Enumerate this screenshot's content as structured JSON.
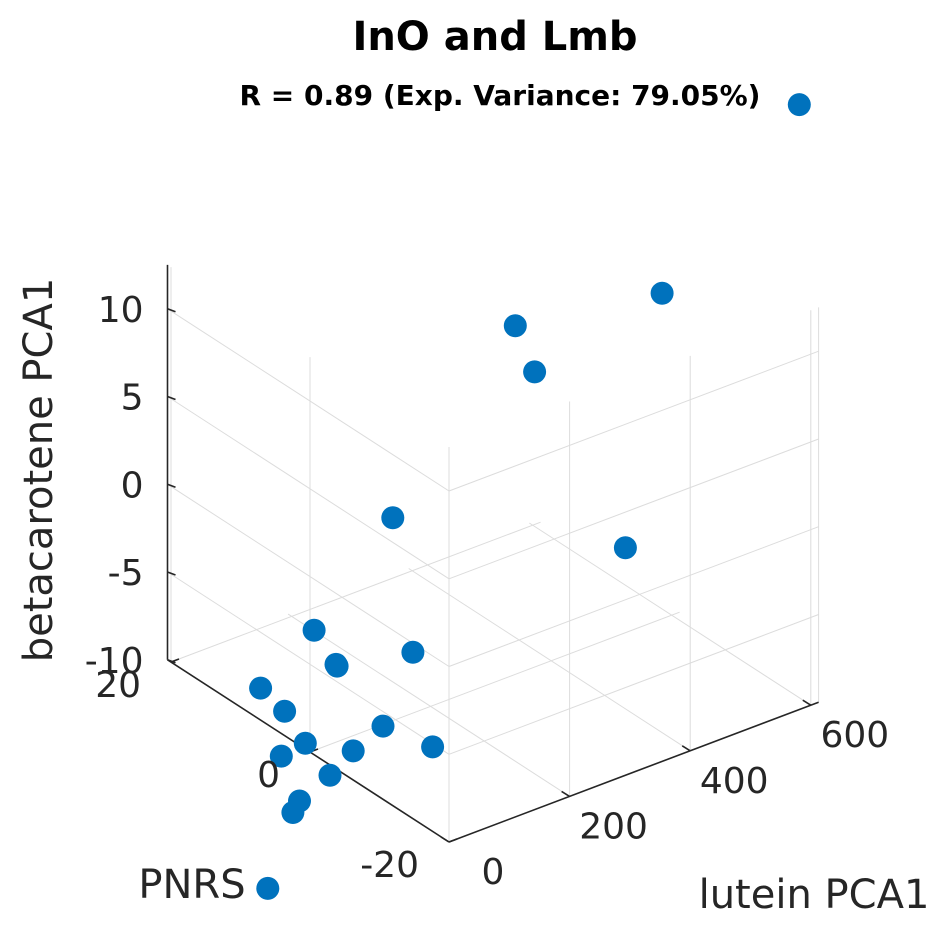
{
  "chart_data": {
    "type": "scatter",
    "title": "InO and Lmb",
    "subtitle": "R = 0.89 (Exp. Variance: 79.05%)",
    "xlabel": "PNRS",
    "ylabel": "lutein PCA1",
    "zlabel": "betacarotene PCA1",
    "x_ticks": [
      "20",
      "0",
      "-20"
    ],
    "y_ticks": [
      "0",
      "200",
      "400",
      "600"
    ],
    "z_ticks": [
      "10",
      "5",
      "0",
      "-5",
      "-10"
    ],
    "grid": true,
    "marker_color": "#0072BD",
    "points": [
      {
        "PNRS": -14.9,
        "lutein": 639.7,
        "betacarotene": 22.4
      },
      {
        "PNRS": -10.7,
        "lutein": 460.6,
        "betacarotene": 12.9
      },
      {
        "PNRS": -1.8,
        "lutein": 319.8,
        "betacarotene": 10.6
      },
      {
        "PNRS": -6.6,
        "lutein": 296.4,
        "betacarotene": 9.5
      },
      {
        "PNRS": -22.8,
        "lutein": 260.3,
        "betacarotene": 4.1
      },
      {
        "PNRS": 0.4,
        "lutein": 141.9,
        "betacarotene": 1.4
      },
      {
        "PNRS": -9.2,
        "lutein": 64.6,
        "betacarotene": -2.8
      },
      {
        "PNRS": 1.6,
        "lutein": 25.3,
        "betacarotene": -3.8
      },
      {
        "PNRS": -1.4,
        "lutein": 26.9,
        "betacarotene": -5.0
      },
      {
        "PNRS": -1.7,
        "lutein": 25.4,
        "betacarotene": -5.0
      },
      {
        "PNRS": -9.6,
        "lutein": 10.4,
        "betacarotene": -6.2
      },
      {
        "PNRS": -14.4,
        "lutein": 37.3,
        "betacarotene": -6.5
      },
      {
        "PNRS": -7.8,
        "lutein": -18.2,
        "betacarotene": -7.7
      },
      {
        "PNRS": 7.4,
        "lutein": 3.3,
        "betacarotene": -8.3
      },
      {
        "PNRS": 4.1,
        "lutein": 5.1,
        "betacarotene": -8.8
      },
      {
        "PNRS": -0.5,
        "lutein": -13.6,
        "betacarotene": -9.2
      },
      {
        "PNRS": -6.3,
        "lutein": -39.4,
        "betacarotene": -9.2
      },
      {
        "PNRS": -4.1,
        "lutein": -64.7,
        "betacarotene": -10.9
      },
      {
        "PNRS": -3.4,
        "lutein": -67.5,
        "betacarotene": -11.7
      },
      {
        "PNRS": 4.4,
        "lutein": 3.1,
        "betacarotene": -11.4
      },
      {
        "PNRS": -3.6,
        "lutein": -111.5,
        "betacarotene": -15.4
      }
    ]
  }
}
